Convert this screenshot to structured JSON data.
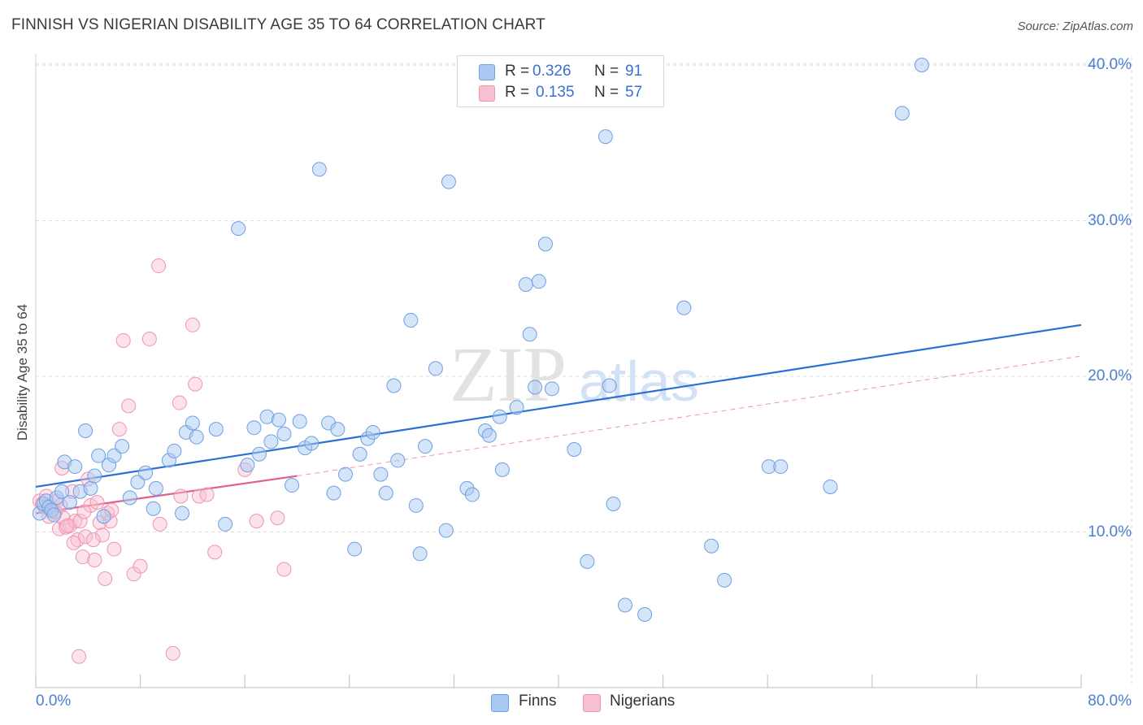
{
  "title": "FINNISH VS NIGERIAN DISABILITY AGE 35 TO 64 CORRELATION CHART",
  "source": "Source: ZipAtlas.com",
  "watermark": {
    "zip": "ZIP",
    "atlas": "atlas"
  },
  "legend": {
    "r_label": "R =",
    "n_label": "N =",
    "finns": {
      "r": "0.326",
      "n": "91"
    },
    "nigerians": {
      "r": "0.135",
      "n": "57"
    }
  },
  "colors": {
    "finns_fill": "#a9c9f3",
    "finns_stroke": "#6f9fe0",
    "finns_line": "#2a6fd4",
    "nigerians_fill": "#f8bfd1",
    "nigerians_stroke": "#ee95b2",
    "nigerians_line": "#e0608d",
    "tick_text": "#4a7fd0",
    "grid": "#dddddd"
  },
  "chart_data": {
    "type": "scatter",
    "title": "FINNISH VS NIGERIAN DISABILITY AGE 35 TO 64 CORRELATION CHART",
    "xlabel": "",
    "ylabel": "Disability Age 35 to 64",
    "xlim": [
      0,
      80
    ],
    "ylim": [
      0,
      42
    ],
    "x_tick_labels": [
      "0.0%",
      "80.0%"
    ],
    "y_ticks": [
      10,
      20,
      30,
      40
    ],
    "y_tick_labels": [
      "10.0%",
      "20.0%",
      "30.0%",
      "40.0%"
    ],
    "series": [
      {
        "name": "Finns",
        "r": 0.326,
        "n": 91,
        "trend": {
          "x": [
            0,
            80
          ],
          "y": [
            12.9,
            23.3
          ]
        },
        "points": [
          [
            0.3,
            11.2
          ],
          [
            0.6,
            11.8
          ],
          [
            0.8,
            12.0
          ],
          [
            1.0,
            11.6
          ],
          [
            1.2,
            11.4
          ],
          [
            1.4,
            11.1
          ],
          [
            1.6,
            12.2
          ],
          [
            2.0,
            12.6
          ],
          [
            2.2,
            14.5
          ],
          [
            2.6,
            11.9
          ],
          [
            3.0,
            14.2
          ],
          [
            3.4,
            12.6
          ],
          [
            3.8,
            16.5
          ],
          [
            4.2,
            12.8
          ],
          [
            4.5,
            13.6
          ],
          [
            4.8,
            14.9
          ],
          [
            5.2,
            11.0
          ],
          [
            5.6,
            14.3
          ],
          [
            6.0,
            14.9
          ],
          [
            6.6,
            15.5
          ],
          [
            7.2,
            12.2
          ],
          [
            7.8,
            13.2
          ],
          [
            8.4,
            13.8
          ],
          [
            9.0,
            11.5
          ],
          [
            9.2,
            12.8
          ],
          [
            10.2,
            14.6
          ],
          [
            10.6,
            15.2
          ],
          [
            11.2,
            11.2
          ],
          [
            11.5,
            16.4
          ],
          [
            12.0,
            17.0
          ],
          [
            12.3,
            16.1
          ],
          [
            13.8,
            16.6
          ],
          [
            14.5,
            10.5
          ],
          [
            15.5,
            29.5
          ],
          [
            16.2,
            14.3
          ],
          [
            16.7,
            16.7
          ],
          [
            17.1,
            15.0
          ],
          [
            17.7,
            17.4
          ],
          [
            18.0,
            15.8
          ],
          [
            18.6,
            17.2
          ],
          [
            19.0,
            16.3
          ],
          [
            19.6,
            13.0
          ],
          [
            20.2,
            17.1
          ],
          [
            20.6,
            15.4
          ],
          [
            21.1,
            15.7
          ],
          [
            21.7,
            33.3
          ],
          [
            22.4,
            17.0
          ],
          [
            22.8,
            12.5
          ],
          [
            23.1,
            16.6
          ],
          [
            23.7,
            13.7
          ],
          [
            24.4,
            8.9
          ],
          [
            24.8,
            15.0
          ],
          [
            25.4,
            16.0
          ],
          [
            25.8,
            16.4
          ],
          [
            26.4,
            13.7
          ],
          [
            26.8,
            12.5
          ],
          [
            27.4,
            19.4
          ],
          [
            27.7,
            14.6
          ],
          [
            28.7,
            23.6
          ],
          [
            29.1,
            11.7
          ],
          [
            29.4,
            8.6
          ],
          [
            29.8,
            15.5
          ],
          [
            30.6,
            20.5
          ],
          [
            31.4,
            10.1
          ],
          [
            31.6,
            32.5
          ],
          [
            33.0,
            12.8
          ],
          [
            33.4,
            12.4
          ],
          [
            34.4,
            16.5
          ],
          [
            34.7,
            16.2
          ],
          [
            35.5,
            17.4
          ],
          [
            35.7,
            14.0
          ],
          [
            36.8,
            18.0
          ],
          [
            37.5,
            25.9
          ],
          [
            37.8,
            22.7
          ],
          [
            38.2,
            19.3
          ],
          [
            38.5,
            26.1
          ],
          [
            39.0,
            28.5
          ],
          [
            39.5,
            19.2
          ],
          [
            41.2,
            15.3
          ],
          [
            42.2,
            8.1
          ],
          [
            43.6,
            35.4
          ],
          [
            43.9,
            19.4
          ],
          [
            44.2,
            11.8
          ],
          [
            45.1,
            5.3
          ],
          [
            49.6,
            24.4
          ],
          [
            51.7,
            9.1
          ],
          [
            52.7,
            6.9
          ],
          [
            56.1,
            14.2
          ],
          [
            57.0,
            14.2
          ],
          [
            60.8,
            12.9
          ],
          [
            66.3,
            36.9
          ],
          [
            67.8,
            40.0
          ],
          [
            46.6,
            4.7
          ]
        ]
      },
      {
        "name": "Nigerians",
        "r": 0.135,
        "n": 57,
        "trend": {
          "x": [
            0,
            20
          ],
          "y": [
            11.2,
            13.6
          ],
          "dashed_extension": {
            "x": [
              20,
              80
            ],
            "y": [
              13.6,
              21.3
            ]
          }
        },
        "points": [
          [
            0.3,
            12.0
          ],
          [
            0.5,
            11.8
          ],
          [
            0.8,
            12.3
          ],
          [
            1.0,
            11.0
          ],
          [
            1.2,
            11.5
          ],
          [
            1.4,
            11.3
          ],
          [
            1.6,
            12.0
          ],
          [
            1.8,
            10.2
          ],
          [
            2.0,
            14.1
          ],
          [
            2.1,
            10.9
          ],
          [
            2.3,
            10.3
          ],
          [
            2.6,
            10.4
          ],
          [
            2.8,
            12.6
          ],
          [
            3.0,
            10.7
          ],
          [
            3.2,
            9.5
          ],
          [
            3.4,
            10.7
          ],
          [
            3.6,
            8.4
          ],
          [
            3.8,
            9.7
          ],
          [
            4.0,
            13.4
          ],
          [
            4.2,
            11.7
          ],
          [
            4.5,
            8.2
          ],
          [
            4.7,
            11.9
          ],
          [
            4.9,
            10.6
          ],
          [
            5.1,
            9.8
          ],
          [
            5.3,
            7.0
          ],
          [
            5.5,
            11.2
          ],
          [
            5.7,
            10.7
          ],
          [
            6.0,
            8.9
          ],
          [
            6.4,
            16.6
          ],
          [
            6.7,
            22.3
          ],
          [
            7.1,
            18.1
          ],
          [
            7.5,
            7.3
          ],
          [
            8.0,
            7.8
          ],
          [
            8.7,
            22.4
          ],
          [
            9.4,
            27.1
          ],
          [
            9.5,
            10.5
          ],
          [
            10.5,
            2.2
          ],
          [
            11.0,
            18.3
          ],
          [
            11.1,
            12.3
          ],
          [
            12.0,
            23.3
          ],
          [
            12.2,
            19.5
          ],
          [
            12.5,
            12.3
          ],
          [
            13.1,
            12.4
          ],
          [
            13.7,
            8.7
          ],
          [
            16.0,
            14.0
          ],
          [
            16.9,
            10.7
          ],
          [
            18.5,
            10.9
          ],
          [
            19.0,
            7.6
          ],
          [
            3.3,
            2.0
          ],
          [
            1.5,
            11.3
          ],
          [
            2.4,
            10.4
          ],
          [
            0.7,
            11.6
          ],
          [
            1.9,
            11.7
          ],
          [
            2.9,
            9.3
          ],
          [
            4.4,
            9.5
          ],
          [
            5.8,
            11.4
          ],
          [
            3.7,
            11.3
          ]
        ]
      }
    ]
  }
}
